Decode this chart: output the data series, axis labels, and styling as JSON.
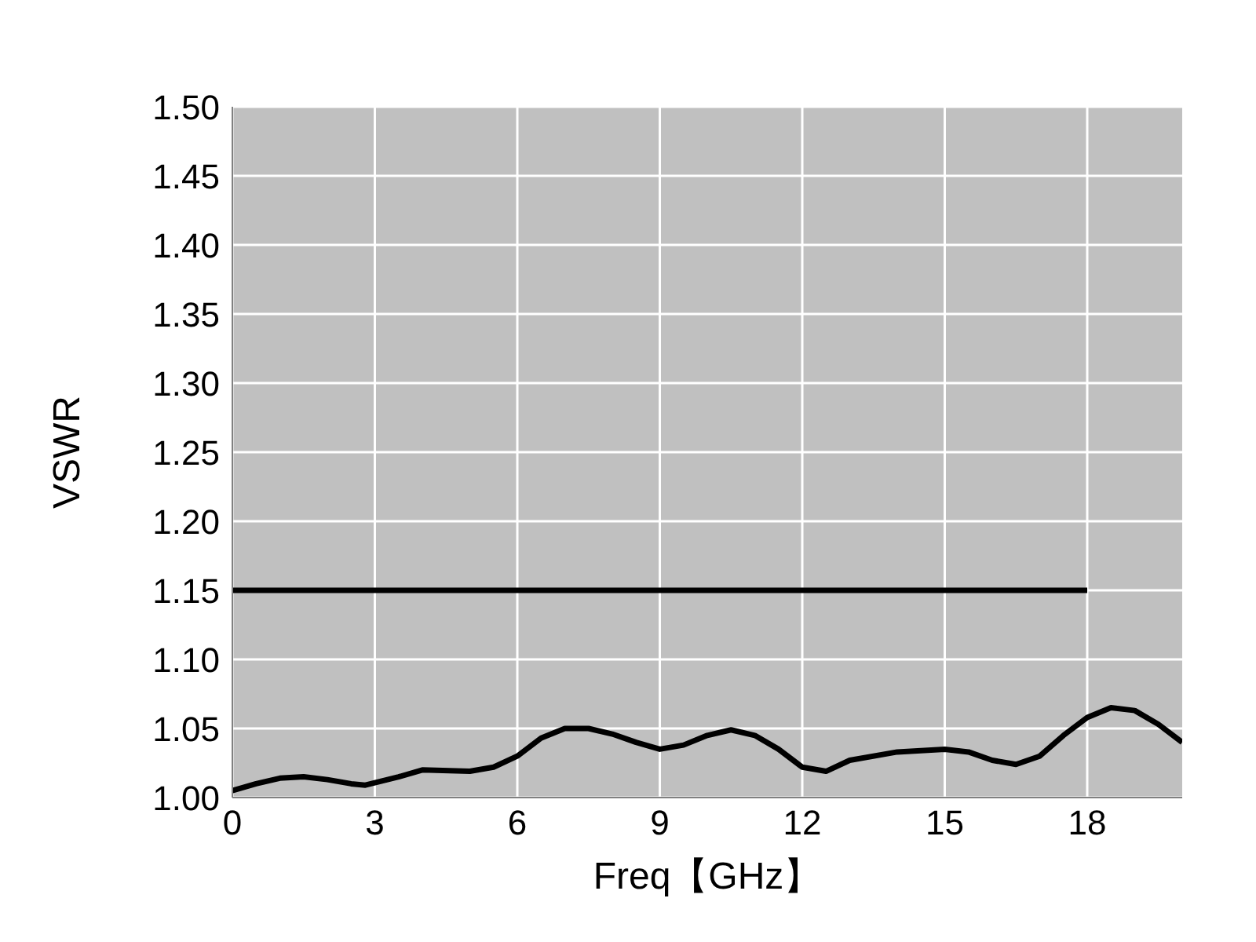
{
  "chart_data": {
    "type": "line",
    "xlabel": "Freq【GHz】",
    "ylabel": "VSWR",
    "xlim": [
      0,
      20
    ],
    "xticks": [
      0,
      3,
      6,
      9,
      12,
      15,
      18
    ],
    "ylim": [
      1.0,
      1.5
    ],
    "yticks": [
      {
        "value": 1.0,
        "label": "1.00"
      },
      {
        "value": 1.05,
        "label": "1.05"
      },
      {
        "value": 1.1,
        "label": "1.10"
      },
      {
        "value": 1.15,
        "label": "1.15"
      },
      {
        "value": 1.2,
        "label": "1.20"
      },
      {
        "value": 1.25,
        "label": "1.25"
      },
      {
        "value": 1.3,
        "label": "1.30"
      },
      {
        "value": 1.35,
        "label": "1.35"
      },
      {
        "value": 1.4,
        "label": "1.40"
      },
      {
        "value": 1.45,
        "label": "1.45"
      },
      {
        "value": 1.5,
        "label": "1.50"
      }
    ],
    "grid": true,
    "legend": false,
    "marker": "none",
    "line_style": "solid",
    "series": [
      {
        "color": "#000000",
        "x": [
          0,
          0.5,
          1,
          1.5,
          2,
          2.5,
          2.8,
          3.5,
          4,
          5,
          5.5,
          6,
          6.5,
          7,
          7.5,
          8,
          8.5,
          9,
          9.5,
          10,
          10.5,
          11,
          11.5,
          12,
          12.5,
          13,
          14,
          15,
          15.5,
          16,
          16.5,
          17,
          17.5,
          18,
          18.5,
          19,
          19.5,
          20
        ],
        "values": [
          1.005,
          1.01,
          1.014,
          1.015,
          1.013,
          1.01,
          1.009,
          1.015,
          1.02,
          1.019,
          1.022,
          1.03,
          1.043,
          1.05,
          1.05,
          1.046,
          1.04,
          1.035,
          1.038,
          1.045,
          1.049,
          1.045,
          1.035,
          1.022,
          1.019,
          1.027,
          1.033,
          1.035,
          1.033,
          1.027,
          1.024,
          1.03,
          1.045,
          1.058,
          1.065,
          1.063,
          1.053,
          1.04
        ]
      },
      {
        "color": "#000000",
        "x": [
          0,
          18
        ],
        "values": [
          1.15,
          1.15
        ]
      }
    ]
  }
}
